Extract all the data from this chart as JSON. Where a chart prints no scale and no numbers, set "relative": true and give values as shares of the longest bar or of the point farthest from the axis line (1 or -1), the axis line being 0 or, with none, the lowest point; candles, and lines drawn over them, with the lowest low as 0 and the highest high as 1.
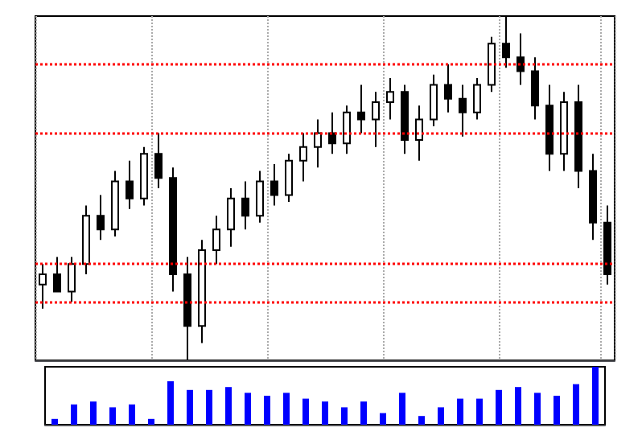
{
  "chart_data": [
    {
      "type": "candlestick",
      "relative": true,
      "color": "#000000",
      "grid": "x",
      "categories": [
        null,
        null,
        null,
        null,
        null,
        null,
        null,
        null,
        null,
        null,
        null,
        null,
        null,
        null,
        null,
        null,
        null,
        null,
        null,
        null,
        null,
        null,
        null,
        null,
        null,
        null,
        null,
        null,
        null,
        null,
        null,
        null,
        null,
        null,
        null,
        null,
        null,
        null,
        null,
        null
      ],
      "ohlc": [
        [
          0.22,
          0.28,
          0.15,
          0.25
        ],
        [
          0.25,
          0.3,
          0.2,
          0.2
        ],
        [
          0.2,
          0.3,
          0.17,
          0.28
        ],
        [
          0.28,
          0.45,
          0.25,
          0.42
        ],
        [
          0.42,
          0.48,
          0.35,
          0.38
        ],
        [
          0.38,
          0.55,
          0.36,
          0.52
        ],
        [
          0.52,
          0.58,
          0.44,
          0.47
        ],
        [
          0.47,
          0.62,
          0.45,
          0.6
        ],
        [
          0.6,
          0.66,
          0.5,
          0.53
        ],
        [
          0.53,
          0.56,
          0.2,
          0.25
        ],
        [
          0.25,
          0.3,
          0,
          0.1
        ],
        [
          0.1,
          0.35,
          0.05,
          0.32
        ],
        [
          0.32,
          0.42,
          0.28,
          0.38
        ],
        [
          0.38,
          0.5,
          0.33,
          0.47
        ],
        [
          0.47,
          0.52,
          0.38,
          0.42
        ],
        [
          0.42,
          0.55,
          0.4,
          0.52
        ],
        [
          0.52,
          0.57,
          0.45,
          0.48
        ],
        [
          0.48,
          0.6,
          0.46,
          0.58
        ],
        [
          0.58,
          0.66,
          0.52,
          0.62
        ],
        [
          0.62,
          0.7,
          0.56,
          0.66
        ],
        [
          0.66,
          0.72,
          0.6,
          0.63
        ],
        [
          0.63,
          0.74,
          0.6,
          0.72
        ],
        [
          0.72,
          0.8,
          0.66,
          0.7
        ],
        [
          0.7,
          0.78,
          0.62,
          0.75
        ],
        [
          0.75,
          0.82,
          0.7,
          0.78
        ],
        [
          0.78,
          0.8,
          0.6,
          0.64
        ],
        [
          0.64,
          0.74,
          0.58,
          0.7
        ],
        [
          0.7,
          0.83,
          0.68,
          0.8
        ],
        [
          0.8,
          0.86,
          0.72,
          0.76
        ],
        [
          0.76,
          0.8,
          0.65,
          0.72
        ],
        [
          0.72,
          0.82,
          0.7,
          0.8
        ],
        [
          0.8,
          0.94,
          0.78,
          0.92
        ],
        [
          0.92,
          1,
          0.85,
          0.88
        ],
        [
          0.88,
          0.95,
          0.8,
          0.84
        ],
        [
          0.84,
          0.88,
          0.7,
          0.74
        ],
        [
          0.74,
          0.8,
          0.55,
          0.6
        ],
        [
          0.6,
          0.78,
          0.55,
          0.75
        ],
        [
          0.75,
          0.8,
          0.5,
          0.55
        ],
        [
          0.55,
          0.6,
          0.35,
          0.4
        ],
        [
          0.4,
          0.45,
          0.22,
          0.25
        ]
      ],
      "ref_lines": [
        {
          "axis": "y",
          "value": 0.86,
          "color": "#ff0000",
          "line_style": "dotted"
        },
        {
          "axis": "y",
          "value": 0.66,
          "color": "#ff0000",
          "line_style": "dotted"
        },
        {
          "axis": "y",
          "value": 0.28,
          "color": "#ff0000",
          "line_style": "dotted"
        },
        {
          "axis": "y",
          "value": 0.17,
          "color": "#ff0000",
          "line_style": "dotted"
        }
      ]
    },
    {
      "type": "bar",
      "relative": true,
      "color": "#0000ff",
      "categories": [
        null,
        null,
        null,
        null,
        null,
        null,
        null,
        null,
        null,
        null,
        null,
        null,
        null,
        null,
        null,
        null,
        null,
        null,
        null,
        null,
        null,
        null,
        null,
        null,
        null,
        null,
        null,
        null,
        null
      ],
      "values": [
        0.1,
        0.35,
        0.4,
        0.3,
        0.35,
        0.1,
        0.75,
        0.6,
        0.6,
        0.65,
        0.55,
        0.5,
        0.55,
        0.45,
        0.4,
        0.3,
        0.4,
        0.2,
        0.55,
        0.15,
        0.3,
        0.45,
        0.45,
        0.6,
        0.65,
        0.55,
        0.5,
        0.7,
        1
      ]
    }
  ]
}
